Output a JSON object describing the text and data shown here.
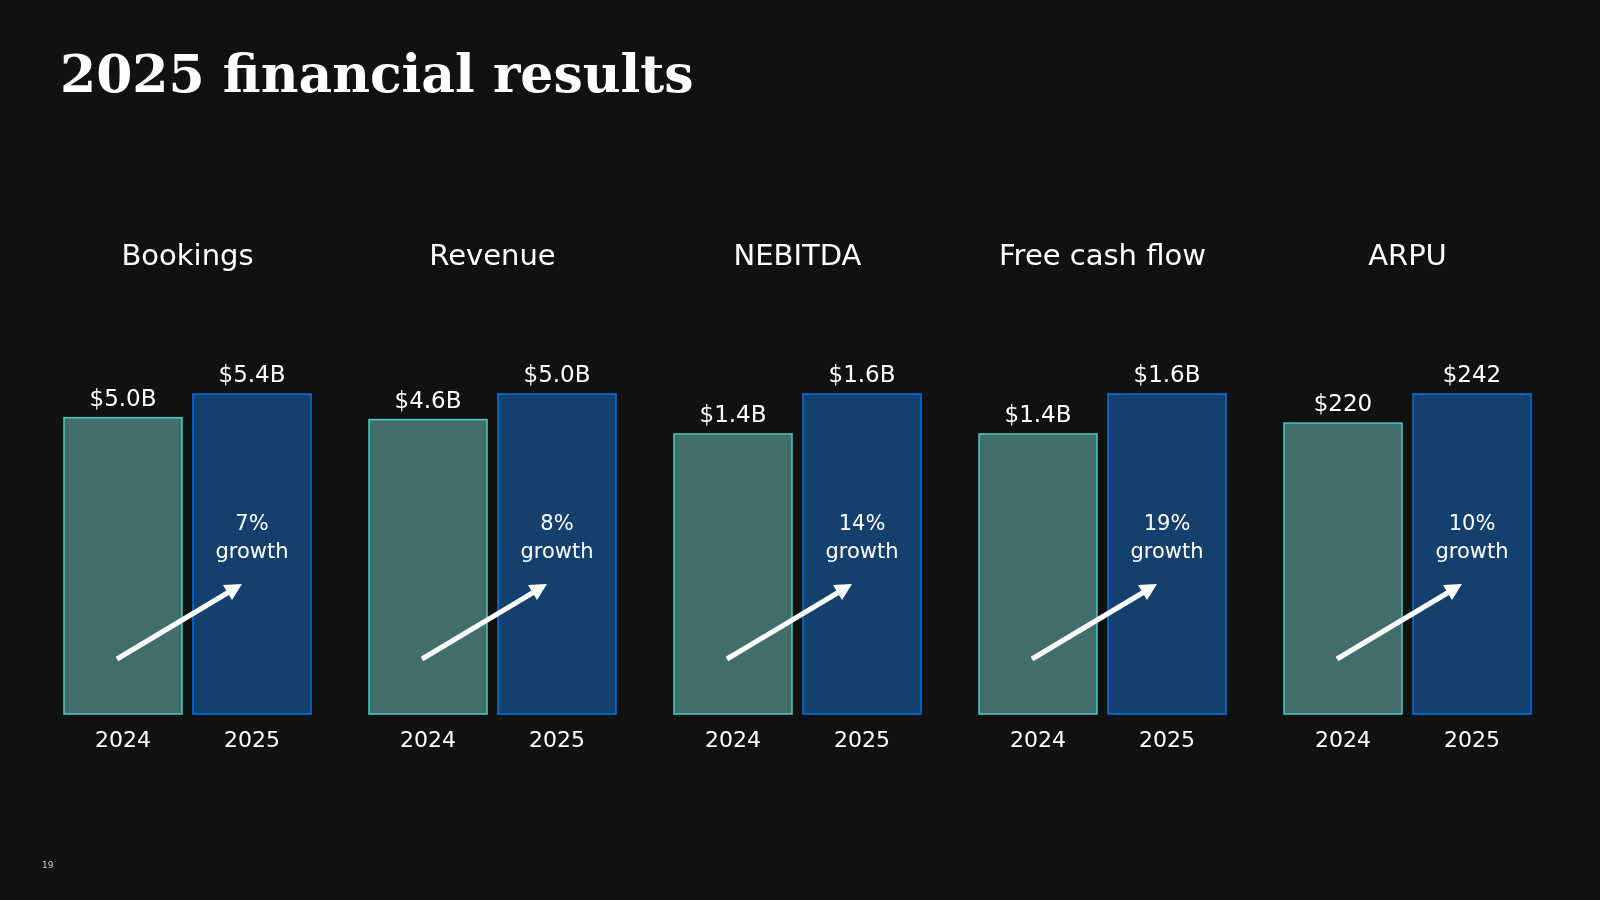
{
  "chart_data": [
    {
      "type": "other",
      "title": "2025 financial results",
      "annotations": [
        "19"
      ]
    },
    {
      "type": "bar",
      "title": "Bookings",
      "categories": [
        "2024",
        "2025"
      ],
      "values": [
        5.0,
        5.4
      ],
      "colors": [
        "#416d6b",
        "#15406e"
      ],
      "value_labels": [
        "$5.0B",
        "$5.4B"
      ],
      "annotations": [
        "7% growth"
      ]
    },
    {
      "type": "bar",
      "title": "Revenue",
      "categories": [
        "2024",
        "2025"
      ],
      "values": [
        4.6,
        5.0
      ],
      "colors": [
        "#416d6b",
        "#15406e"
      ],
      "value_labels": [
        "$4.6B",
        "$5.0B"
      ],
      "annotations": [
        "8% growth"
      ]
    },
    {
      "type": "bar",
      "title": "NEBITDA",
      "categories": [
        "2024",
        "2025"
      ],
      "values": [
        1.4,
        1.6
      ],
      "colors": [
        "#416d6b",
        "#15406e"
      ],
      "value_labels": [
        "$1.4B",
        "$1.6B"
      ],
      "annotations": [
        "14% growth"
      ]
    },
    {
      "type": "bar",
      "title": "Free cash flow",
      "categories": [
        "2024",
        "2025"
      ],
      "values": [
        1.4,
        1.6
      ],
      "colors": [
        "#416d6b",
        "#15406e"
      ],
      "value_labels": [
        "$1.4B",
        "$1.6B"
      ],
      "annotations": [
        "19% growth"
      ]
    },
    {
      "type": "bar",
      "title": "ARPU",
      "categories": [
        "2024",
        "2025"
      ],
      "values": [
        220,
        242
      ],
      "colors": [
        "#416d6b",
        "#15406e"
      ],
      "value_labels": [
        "$220",
        "$242"
      ],
      "annotations": [
        "10% growth"
      ]
    }
  ]
}
